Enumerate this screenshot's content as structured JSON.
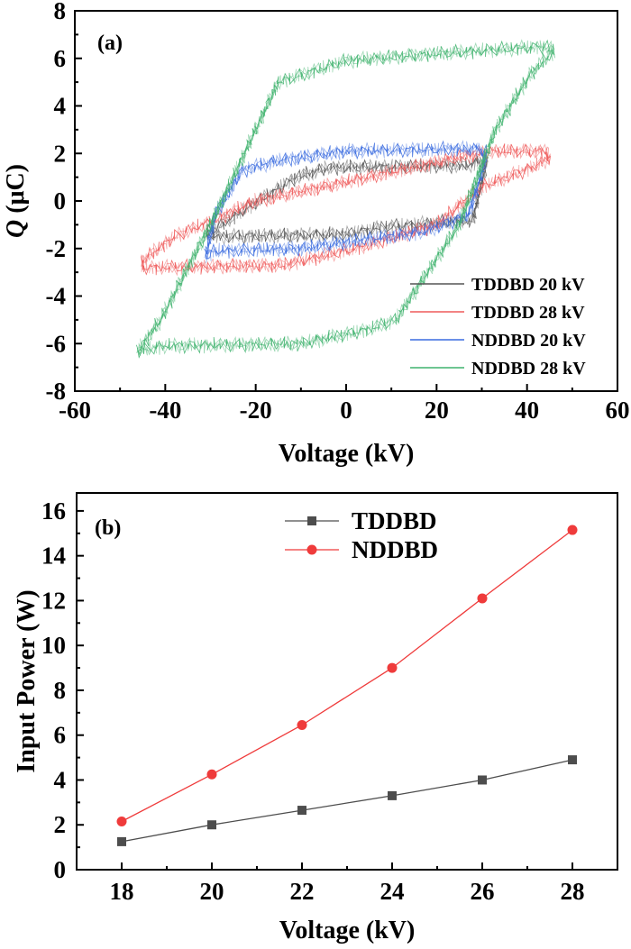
{
  "colors": {
    "TDDBD_20kV": "#555555",
    "TDDBD_28kV": "#ef5a5a",
    "NDDBD_20kV": "#3a6be0",
    "NDDBD_28kV": "#3fb36e",
    "power_TDDBD": "#4d4d4d",
    "power_NDDBD": "#ef3b3b"
  },
  "chart_data": [
    {
      "type": "line",
      "panel_label": "(a)",
      "title": "",
      "xlabel": "Voltage (kV)",
      "ylabel_symbol": "Q",
      "ylabel_unit": " (μC)",
      "xlim": [
        -60,
        60
      ],
      "ylim": [
        -8,
        8
      ],
      "xticks": [
        "-60",
        "-40",
        "-20",
        "0",
        "20",
        "40",
        "60"
      ],
      "yticks": [
        "8",
        "6",
        "4",
        "2",
        "0",
        "-2",
        "-4",
        "-6",
        "-8"
      ],
      "grid": false,
      "legend_position": "bottom-right",
      "series": [
        {
          "name": "TDDBD 20 kV",
          "points": [
            [
              -31,
              -1.4
            ],
            [
              -28,
              -1.5
            ],
            [
              0,
              -1.4
            ],
            [
              8,
              -1.1
            ],
            [
              28,
              -0.8
            ],
            [
              31,
              1.6
            ],
            [
              30,
              1.7
            ],
            [
              27,
              1.5
            ],
            [
              -4,
              1.4
            ],
            [
              -11,
              1.0
            ],
            [
              -31,
              -1.4
            ]
          ]
        },
        {
          "name": "TDDBD 28 kV",
          "points": [
            [
              -45,
              -2.8
            ],
            [
              -42,
              -2.8
            ],
            [
              -14,
              -2.7
            ],
            [
              2,
              -2.0
            ],
            [
              20,
              -1.0
            ],
            [
              30,
              0.6
            ],
            [
              41,
              1.4
            ],
            [
              45,
              1.8
            ],
            [
              44,
              2.1
            ],
            [
              33,
              2.1
            ],
            [
              24,
              1.8
            ],
            [
              0,
              0.8
            ],
            [
              -20,
              0.0
            ],
            [
              -28,
              -0.7
            ],
            [
              -38,
              -1.5
            ],
            [
              -45,
              -2.5
            ],
            [
              -45,
              -2.8
            ]
          ]
        },
        {
          "name": "NDDBD 20 kV",
          "points": [
            [
              -31,
              -2.3
            ],
            [
              -29,
              -2.1
            ],
            [
              -10,
              -2.0
            ],
            [
              5,
              -1.6
            ],
            [
              17,
              -1.3
            ],
            [
              27,
              -0.6
            ],
            [
              30,
              1.2
            ],
            [
              31,
              2.0
            ],
            [
              29,
              2.2
            ],
            [
              0,
              2.1
            ],
            [
              -15,
              1.7
            ],
            [
              -23,
              1.3
            ],
            [
              -29,
              -0.6
            ],
            [
              -31,
              -2.3
            ]
          ]
        },
        {
          "name": "NDDBD 28 kV",
          "points": [
            [
              -46,
              -6.3
            ],
            [
              -40,
              -6.1
            ],
            [
              -10,
              -6.0
            ],
            [
              5,
              -5.4
            ],
            [
              11,
              -5.0
            ],
            [
              25,
              -1.0
            ],
            [
              33,
              3.0
            ],
            [
              41,
              5.4
            ],
            [
              46,
              6.3
            ],
            [
              44,
              6.5
            ],
            [
              20,
              6.2
            ],
            [
              0,
              5.9
            ],
            [
              -15,
              5.0
            ],
            [
              -20,
              3.0
            ],
            [
              -30,
              -1.0
            ],
            [
              -41,
              -5.0
            ],
            [
              -46,
              -6.3
            ]
          ]
        }
      ]
    },
    {
      "type": "line",
      "panel_label": "(b)",
      "title": "",
      "xlabel": "Voltage (kV)",
      "ylabel": "Input Power (W)",
      "xlim": [
        17,
        29
      ],
      "ylim": [
        0,
        16.8
      ],
      "xticks": [
        "18",
        "20",
        "22",
        "24",
        "26",
        "28"
      ],
      "yticks": [
        "16",
        "14",
        "12",
        "10",
        "8",
        "6",
        "4",
        "2",
        "0"
      ],
      "grid": false,
      "legend_position": "top-center",
      "x": [
        18,
        20,
        22,
        24,
        26,
        28
      ],
      "series": [
        {
          "name": "TDDBD",
          "marker": "square",
          "values": [
            1.25,
            2.0,
            2.65,
            3.3,
            4.0,
            4.9
          ]
        },
        {
          "name": "NDDBD",
          "marker": "circle",
          "values": [
            2.15,
            4.25,
            6.45,
            9.0,
            12.1,
            15.15
          ]
        }
      ]
    }
  ]
}
